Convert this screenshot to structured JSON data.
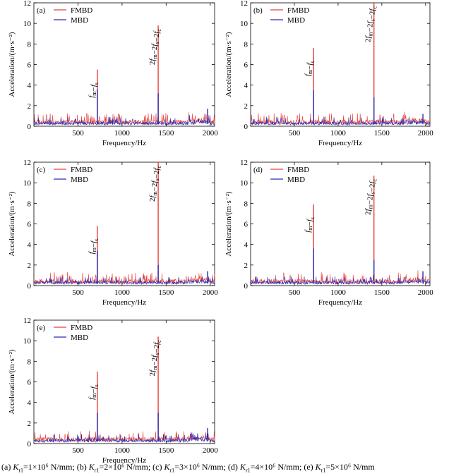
{
  "chart_data": [
    {
      "type": "line",
      "panel_label": "(a)",
      "xlabel": "Frequency/Hz",
      "ylabel": "Acceleration/(m·s⁻²)",
      "xlim": [
        0,
        2050
      ],
      "ylim": [
        0,
        12
      ],
      "xticks": [
        "500",
        "1000",
        "1500",
        "2000"
      ],
      "yticks": [
        "0",
        "2",
        "4",
        "6",
        "8",
        "10",
        "12"
      ],
      "legend_position": "top-left",
      "series": [
        {
          "name": "FMBD",
          "color": "#e8403a",
          "noise_level": 0.5,
          "peaks": [
            [
              720,
              5.5
            ],
            [
              1410,
              9.8
            ]
          ]
        },
        {
          "name": "MBD",
          "color": "#2b2bb3",
          "noise_level": 0.35,
          "peaks": [
            [
              720,
              3.6
            ],
            [
              1410,
              3.2
            ],
            [
              1970,
              1.7
            ]
          ]
        }
      ],
      "annotations": [
        {
          "text": "fm−fs",
          "x": 720
        },
        {
          "text": "2fm−2fs−2fc",
          "x": 1410
        }
      ]
    },
    {
      "type": "line",
      "panel_label": "(b)",
      "xlabel": "Frequency/Hz",
      "ylabel": "Acceleration/(m·s⁻²)",
      "xlim": [
        0,
        2050
      ],
      "ylim": [
        0,
        12
      ],
      "xticks": [
        "500",
        "1000",
        "1500",
        "2000"
      ],
      "yticks": [
        "0",
        "2",
        "4",
        "6",
        "8",
        "10",
        "12"
      ],
      "legend_position": "top-left",
      "series": [
        {
          "name": "FMBD",
          "color": "#e8403a",
          "noise_level": 0.5,
          "peaks": [
            [
              720,
              7.6
            ],
            [
              1410,
              12.0
            ]
          ]
        },
        {
          "name": "MBD",
          "color": "#2b2bb3",
          "noise_level": 0.35,
          "peaks": [
            [
              720,
              3.5
            ],
            [
              1410,
              2.8
            ],
            [
              1970,
              1.2
            ]
          ]
        }
      ],
      "annotations": [
        {
          "text": "fm−fs",
          "x": 720
        },
        {
          "text": "2fm−2fs−2fc",
          "x": 1410
        }
      ]
    },
    {
      "type": "line",
      "panel_label": "(c)",
      "xlabel": "Frequency/Hz",
      "ylabel": "Acceleration/(m·s⁻²)",
      "xlim": [
        0,
        2050
      ],
      "ylim": [
        0,
        12
      ],
      "xticks": [
        "500",
        "1000",
        "1500",
        "2000"
      ],
      "yticks": [
        "0",
        "2",
        "4",
        "6",
        "8",
        "10",
        "12"
      ],
      "legend_position": "top-left",
      "series": [
        {
          "name": "FMBD",
          "color": "#e8403a",
          "noise_level": 0.5,
          "peaks": [
            [
              720,
              5.8
            ],
            [
              1410,
              12.0
            ]
          ]
        },
        {
          "name": "MBD",
          "color": "#2b2bb3",
          "noise_level": 0.35,
          "peaks": [
            [
              720,
              3.4
            ],
            [
              1410,
              2.0
            ],
            [
              1970,
              1.4
            ]
          ]
        }
      ],
      "annotations": [
        {
          "text": "fm−fs",
          "x": 720
        },
        {
          "text": "2fm−2fs−2fc",
          "x": 1410
        }
      ]
    },
    {
      "type": "line",
      "panel_label": "(d)",
      "xlabel": "Frequency/Hz",
      "ylabel": "Acceleration/(m·s⁻²)",
      "xlim": [
        0,
        2050
      ],
      "ylim": [
        0,
        12
      ],
      "xticks": [
        "500",
        "1000",
        "1500",
        "2000"
      ],
      "yticks": [
        "0",
        "2",
        "4",
        "6",
        "8",
        "10",
        "12"
      ],
      "legend_position": "top-left",
      "series": [
        {
          "name": "FMBD",
          "color": "#e8403a",
          "noise_level": 0.5,
          "peaks": [
            [
              720,
              7.9
            ],
            [
              1410,
              10.7
            ]
          ]
        },
        {
          "name": "MBD",
          "color": "#2b2bb3",
          "noise_level": 0.35,
          "peaks": [
            [
              720,
              3.6
            ],
            [
              1410,
              2.5
            ],
            [
              1970,
              1.4
            ]
          ]
        }
      ],
      "annotations": [
        {
          "text": "fm−fs",
          "x": 720
        },
        {
          "text": "2fm−2fs−2fc",
          "x": 1410
        }
      ]
    },
    {
      "type": "line",
      "panel_label": "(e)",
      "xlabel": "Frequency/Hz",
      "ylabel": "Acceleration/(m·s⁻²)",
      "xlim": [
        0,
        2050
      ],
      "ylim": [
        0,
        12
      ],
      "xticks": [
        "500",
        "1000",
        "1500",
        "2000"
      ],
      "yticks": [
        "0",
        "2",
        "4",
        "6",
        "8",
        "10",
        "12"
      ],
      "legend_position": "top-left",
      "series": [
        {
          "name": "FMBD",
          "color": "#e8403a",
          "noise_level": 0.5,
          "peaks": [
            [
              720,
              7.0
            ],
            [
              1410,
              10.4
            ]
          ]
        },
        {
          "name": "MBD",
          "color": "#2b2bb3",
          "noise_level": 0.35,
          "peaks": [
            [
              720,
              3.0
            ],
            [
              1410,
              3.0
            ],
            [
              1970,
              1.5
            ]
          ]
        }
      ],
      "annotations": [
        {
          "text": "fm−fs",
          "x": 720
        },
        {
          "text": "2fm−2fs−2fc",
          "x": 1410
        }
      ]
    }
  ],
  "caption": {
    "items": [
      {
        "label": "(a)",
        "value": "1×10⁶",
        "unit": "N/mm;"
      },
      {
        "label": "(b)",
        "value": "2×10⁶",
        "unit": "N/mm;"
      },
      {
        "label": "(c)",
        "value": "3×10⁶",
        "unit": "N/mm;"
      },
      {
        "label": "(d)",
        "value": "4×10⁶",
        "unit": "N/mm;"
      },
      {
        "label": "(e)",
        "value": "5×10⁶",
        "unit": "N/mm"
      }
    ],
    "symbol": "K",
    "subscript": "r1"
  }
}
